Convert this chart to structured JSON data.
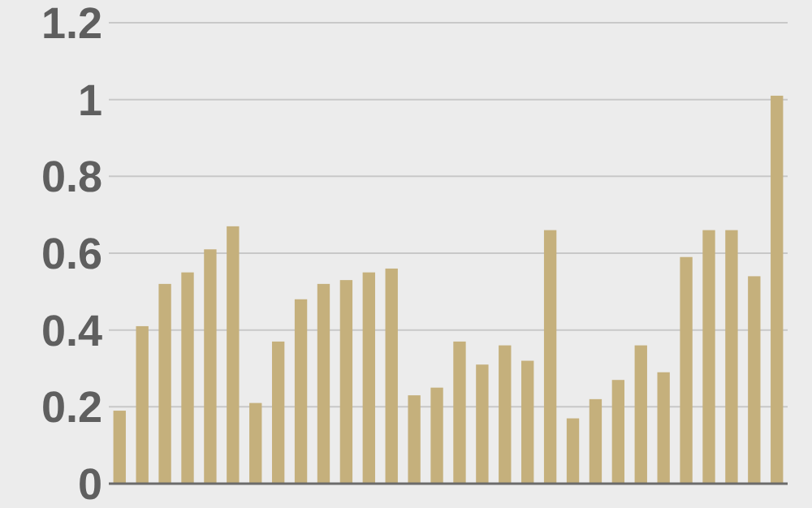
{
  "chart_data": {
    "type": "bar",
    "categories": [
      null,
      null,
      null,
      null,
      null,
      null,
      null,
      null,
      null,
      null,
      null,
      null,
      null,
      null,
      null,
      null,
      null,
      null,
      null,
      null,
      null,
      null,
      null,
      null,
      null,
      null,
      null,
      null,
      null,
      null
    ],
    "values": [
      0.19,
      0.41,
      0.52,
      0.55,
      0.61,
      0.67,
      0.21,
      0.37,
      0.48,
      0.52,
      0.53,
      0.55,
      0.56,
      0.23,
      0.25,
      0.37,
      0.31,
      0.36,
      0.32,
      0.66,
      0.17,
      0.22,
      0.27,
      0.36,
      0.29,
      0.59,
      0.66,
      0.66,
      0.54,
      1.01
    ],
    "color": "#c5b07c",
    "ylim": [
      0,
      1.2
    ],
    "yticks": [
      0,
      0.2,
      0.4,
      0.6,
      0.8,
      1,
      1.2
    ],
    "grid": "y"
  }
}
